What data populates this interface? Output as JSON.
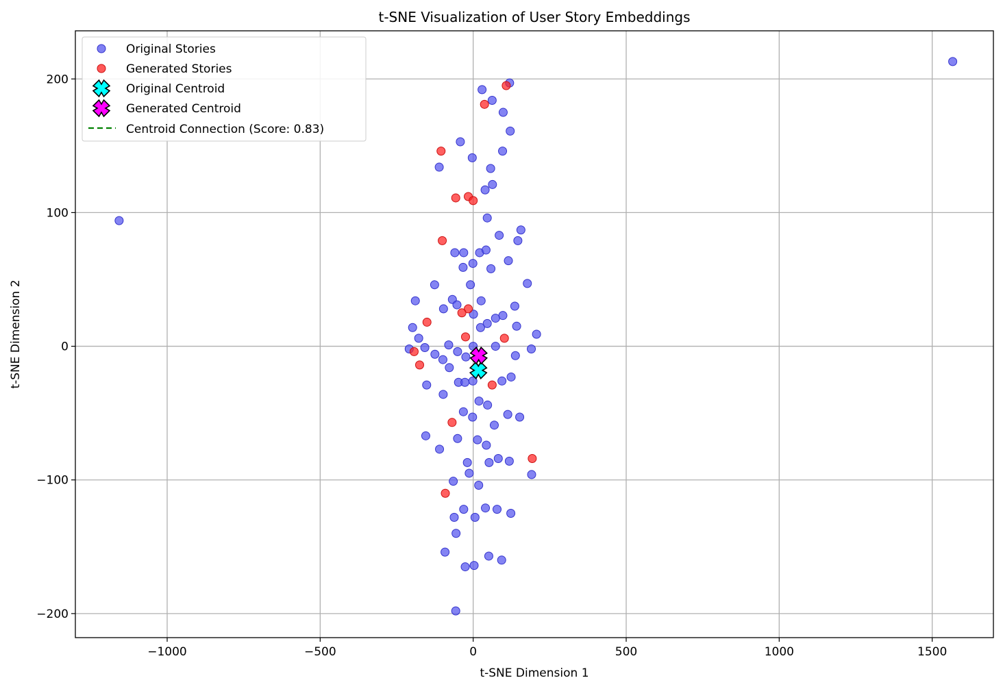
{
  "chart_data": {
    "type": "scatter",
    "title": "t-SNE Visualization of User Story Embeddings",
    "xlabel": "t-SNE Dimension 1",
    "ylabel": "t-SNE Dimension 2",
    "xlim": [
      -1300,
      1700
    ],
    "ylim": [
      -218,
      236
    ],
    "xticks": [
      -1000,
      -500,
      0,
      500,
      1000,
      1500
    ],
    "yticks": [
      -200,
      -100,
      0,
      100,
      200
    ],
    "xtick_labels": [
      "−1000",
      "−500",
      "0",
      "500",
      "1000",
      "1500"
    ],
    "ytick_labels": [
      "−200",
      "−100",
      "0",
      "100",
      "200"
    ],
    "grid": true,
    "legend_position": "upper left",
    "series": [
      {
        "name": "Original Stories",
        "color": "#5555ee",
        "marker": "circle",
        "points": [
          [
            -1157,
            94
          ],
          [
            1567,
            213
          ],
          [
            29,
            192
          ],
          [
            119,
            197
          ],
          [
            62,
            184
          ],
          [
            98,
            175
          ],
          [
            121,
            161
          ],
          [
            -42,
            153
          ],
          [
            -3,
            141
          ],
          [
            96,
            146
          ],
          [
            -111,
            134
          ],
          [
            57,
            133
          ],
          [
            63,
            121
          ],
          [
            39,
            117
          ],
          [
            46,
            96
          ],
          [
            85,
            83
          ],
          [
            156,
            87
          ],
          [
            146,
            79
          ],
          [
            -60,
            70
          ],
          [
            -31,
            70
          ],
          [
            21,
            70
          ],
          [
            42,
            72
          ],
          [
            115,
            64
          ],
          [
            -1,
            62
          ],
          [
            -33,
            59
          ],
          [
            58,
            58
          ],
          [
            177,
            47
          ],
          [
            -126,
            46
          ],
          [
            -9,
            46
          ],
          [
            -189,
            34
          ],
          [
            -68,
            35
          ],
          [
            -53,
            31
          ],
          [
            -97,
            28
          ],
          [
            26,
            34
          ],
          [
            136,
            30
          ],
          [
            1,
            24
          ],
          [
            97,
            23
          ],
          [
            73,
            21
          ],
          [
            46,
            17
          ],
          [
            142,
            15
          ],
          [
            24,
            14
          ],
          [
            -198,
            14
          ],
          [
            -178,
            6
          ],
          [
            -158,
            -1
          ],
          [
            -209,
            -2
          ],
          [
            -80,
            1
          ],
          [
            0,
            0
          ],
          [
            73,
            0
          ],
          [
            190,
            -2
          ],
          [
            207,
            9
          ],
          [
            -125,
            -6
          ],
          [
            -51,
            -4
          ],
          [
            -24,
            -8
          ],
          [
            -99,
            -10
          ],
          [
            138,
            -7
          ],
          [
            -78,
            -16
          ],
          [
            -48,
            -27
          ],
          [
            -27,
            -27
          ],
          [
            -1,
            -26
          ],
          [
            94,
            -26
          ],
          [
            124,
            -23
          ],
          [
            -152,
            -29
          ],
          [
            -98,
            -36
          ],
          [
            19,
            -41
          ],
          [
            47,
            -44
          ],
          [
            -32,
            -49
          ],
          [
            -2,
            -53
          ],
          [
            113,
            -51
          ],
          [
            152,
            -53
          ],
          [
            69,
            -59
          ],
          [
            -155,
            -67
          ],
          [
            -51,
            -69
          ],
          [
            14,
            -70
          ],
          [
            43,
            -74
          ],
          [
            -110,
            -77
          ],
          [
            82,
            -84
          ],
          [
            118,
            -86
          ],
          [
            -19,
            -87
          ],
          [
            52,
            -87
          ],
          [
            -13,
            -95
          ],
          [
            191,
            -96
          ],
          [
            -65,
            -101
          ],
          [
            18,
            -104
          ],
          [
            -31,
            -122
          ],
          [
            40,
            -121
          ],
          [
            78,
            -122
          ],
          [
            123,
            -125
          ],
          [
            -62,
            -128
          ],
          [
            6,
            -128
          ],
          [
            -56,
            -140
          ],
          [
            -92,
            -154
          ],
          [
            51,
            -157
          ],
          [
            93,
            -160
          ],
          [
            -26,
            -165
          ],
          [
            3,
            -164
          ],
          [
            -57,
            -198
          ]
        ]
      },
      {
        "name": "Generated Stories",
        "color": "#ff2222",
        "marker": "circle",
        "points": [
          [
            108,
            195
          ],
          [
            37,
            181
          ],
          [
            -105,
            146
          ],
          [
            -57,
            111
          ],
          [
            -16,
            112
          ],
          [
            0,
            109
          ],
          [
            -101,
            79
          ],
          [
            -151,
            18
          ],
          [
            -16,
            28
          ],
          [
            -37,
            25
          ],
          [
            -25,
            7
          ],
          [
            102,
            6
          ],
          [
            -193,
            -4
          ],
          [
            -175,
            -14
          ],
          [
            62,
            -29
          ],
          [
            -69,
            -57
          ],
          [
            193,
            -84
          ],
          [
            -91,
            -110
          ]
        ]
      },
      {
        "name": "Original Centroid",
        "color": "#00ffff",
        "marker": "X",
        "points": [
          [
            17,
            -18
          ]
        ]
      },
      {
        "name": "Generated Centroid",
        "color": "#ff00ff",
        "marker": "X",
        "points": [
          [
            18,
            -7
          ]
        ]
      }
    ],
    "connection": {
      "name": "Centroid Connection (Score: 0.83)",
      "color": "#008000",
      "style": "dashed",
      "from": [
        17,
        -18
      ],
      "to": [
        18,
        -7
      ]
    }
  }
}
